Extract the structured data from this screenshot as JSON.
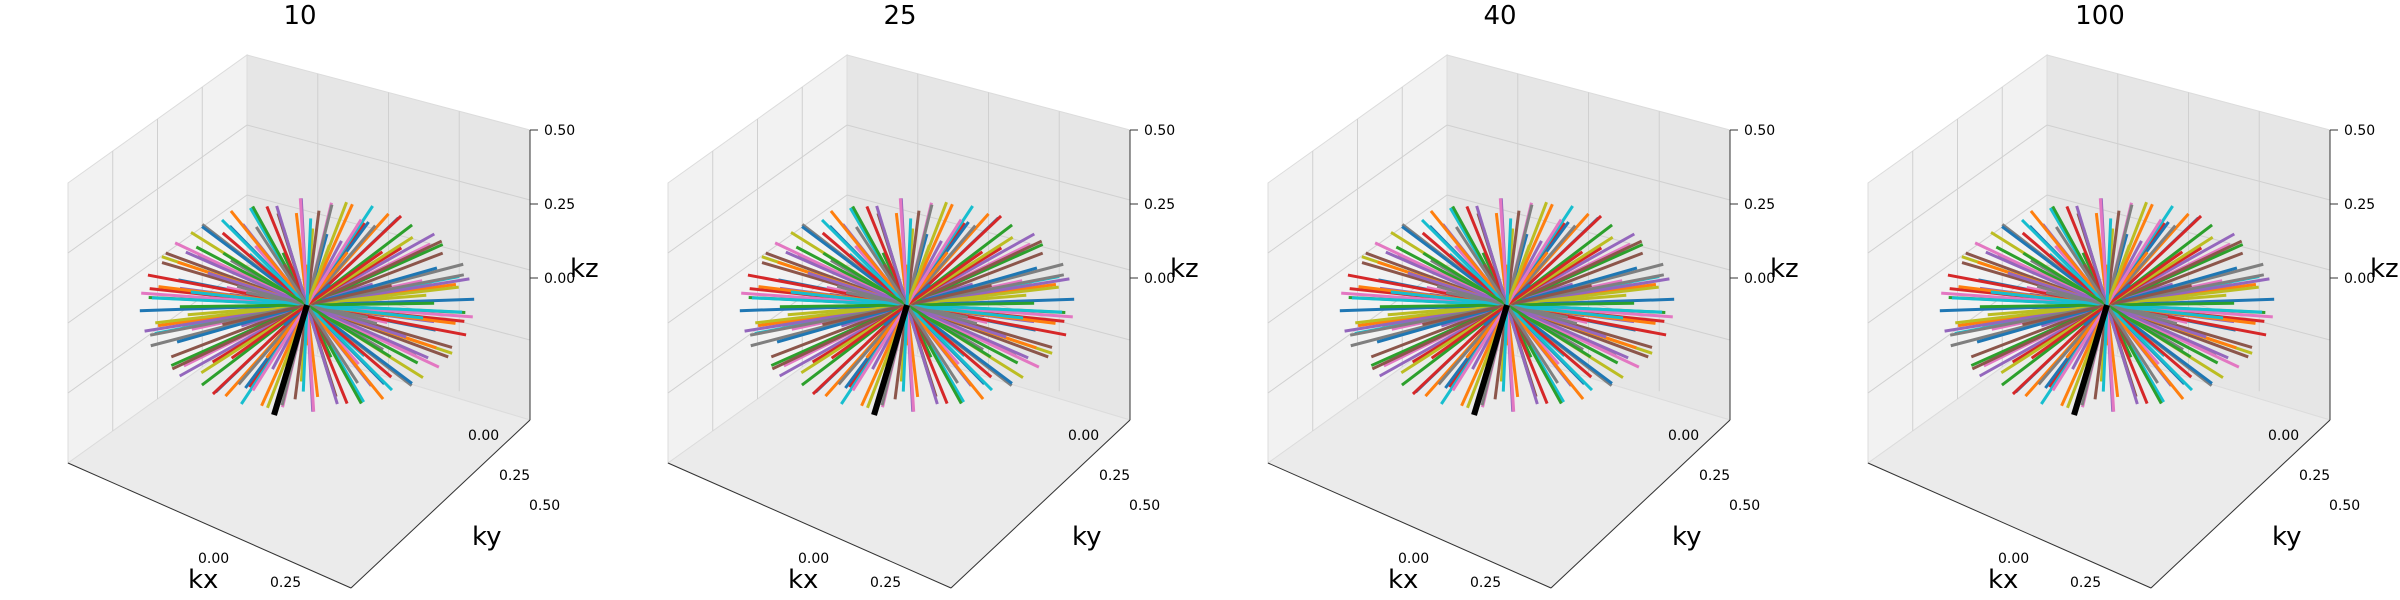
{
  "chart_data": [
    {
      "type": "line3d",
      "title": "10",
      "xlabel": "kx",
      "ylabel": "ky",
      "zlabel": "kz",
      "xticks": [
        "0.00",
        "0.25"
      ],
      "yticks": [
        "0.00",
        "0.25",
        "0.50"
      ],
      "zticks": [
        "0.00",
        "0.25",
        "0.50"
      ],
      "xlim": [
        -0.5,
        0.5
      ],
      "ylim": [
        -0.5,
        0.5
      ],
      "zlim": [
        -0.5,
        0.5
      ],
      "grid": true,
      "spoke_count": 100,
      "spoke_radius": 0.5,
      "highlight_spoke": "black"
    },
    {
      "type": "line3d",
      "title": "25",
      "xlabel": "kx",
      "ylabel": "ky",
      "zlabel": "kz",
      "xticks": [
        "0.00",
        "0.25"
      ],
      "yticks": [
        "0.00",
        "0.25",
        "0.50"
      ],
      "zticks": [
        "0.00",
        "0.25",
        "0.50"
      ],
      "xlim": [
        -0.5,
        0.5
      ],
      "ylim": [
        -0.5,
        0.5
      ],
      "zlim": [
        -0.5,
        0.5
      ],
      "grid": true,
      "spoke_count": 100,
      "spoke_radius": 0.5,
      "highlight_spoke": "black"
    },
    {
      "type": "line3d",
      "title": "40",
      "xlabel": "kx",
      "ylabel": "ky",
      "zlabel": "kz",
      "xticks": [
        "0.00",
        "0.25"
      ],
      "yticks": [
        "0.00",
        "0.25",
        "0.50"
      ],
      "zticks": [
        "0.00",
        "0.25",
        "0.50"
      ],
      "xlim": [
        -0.5,
        0.5
      ],
      "ylim": [
        -0.5,
        0.5
      ],
      "zlim": [
        -0.5,
        0.5
      ],
      "grid": true,
      "spoke_count": 100,
      "spoke_radius": 0.5,
      "highlight_spoke": "black"
    },
    {
      "type": "line3d",
      "title": "100",
      "xlabel": "kx",
      "ylabel": "ky",
      "zlabel": "kz",
      "xticks": [
        "0.00",
        "0.25"
      ],
      "yticks": [
        "0.00",
        "0.25",
        "0.50"
      ],
      "zticks": [
        "0.00",
        "0.25",
        "0.50"
      ],
      "xlim": [
        -0.5,
        0.5
      ],
      "ylim": [
        -0.5,
        0.5
      ],
      "zlim": [
        -0.5,
        0.5
      ],
      "grid": true,
      "spoke_count": 100,
      "spoke_radius": 0.5,
      "highlight_spoke": "black"
    }
  ],
  "colors": {
    "cycle": [
      "#1f77b4",
      "#ff7f0e",
      "#2ca02c",
      "#d62728",
      "#9467bd",
      "#8c564b",
      "#e377c2",
      "#7f7f7f",
      "#bcbd22",
      "#17becf"
    ],
    "pane_left": "#f2f2f2",
    "pane_right": "#e6e6e6",
    "pane_floor": "#ebebeb",
    "grid": "#d0d0d0",
    "highlight": "#000000"
  }
}
